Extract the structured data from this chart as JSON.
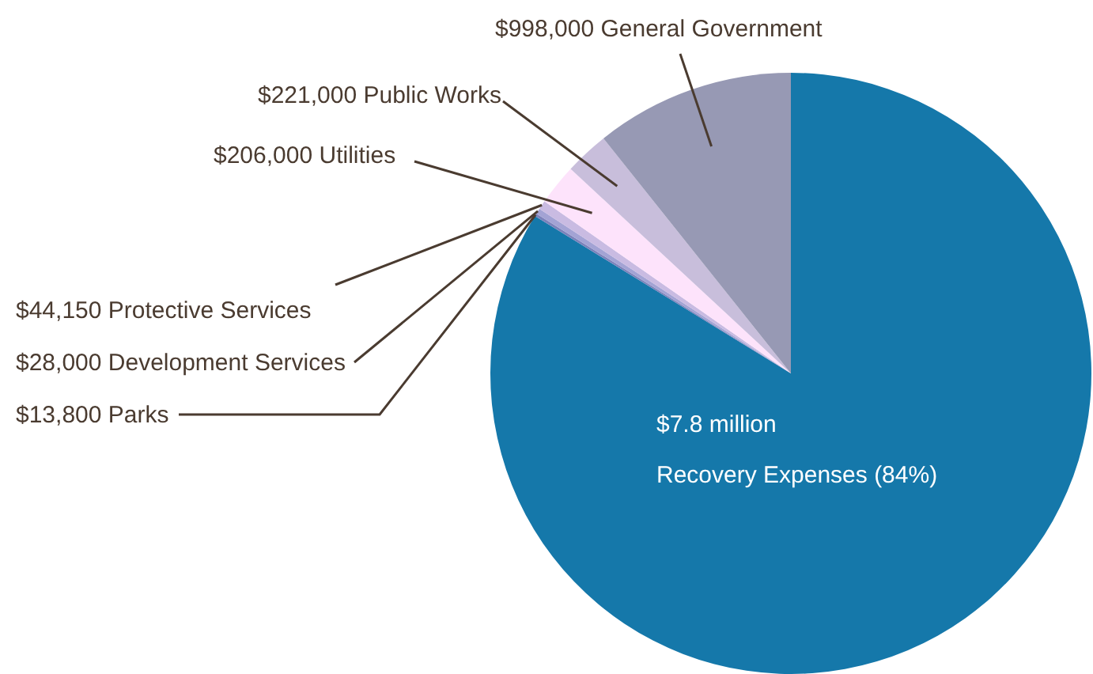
{
  "chart_data": {
    "type": "pie",
    "categories": [
      "$7.8 million\nRecovery Expenses (84%)",
      "$13,800 Parks",
      "$28,000 Development Services",
      "$44,150 Protective Services",
      "$206,000 Utilities",
      "$221,000 Public Works",
      "$998,000 General Government"
    ],
    "values": [
      7800000,
      13800,
      28000,
      44150,
      206000,
      221000,
      998000
    ],
    "colors": [
      "#1578aa",
      "#7c82bb",
      "#a3a3d4",
      "#c9bbe2",
      "#fde3fb",
      "#c8bedb",
      "#9799b4"
    ]
  }
}
